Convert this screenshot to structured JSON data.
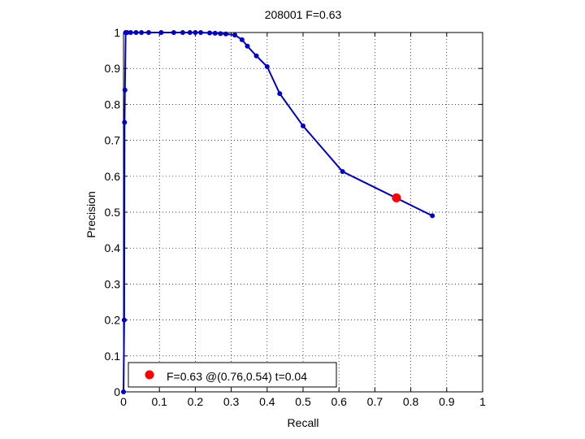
{
  "chart_data": {
    "type": "line",
    "title": "208001 F=0.63",
    "xlabel": "Recall",
    "ylabel": "Precision",
    "xlim": [
      0,
      1
    ],
    "ylim": [
      0,
      1
    ],
    "grid": true,
    "x_ticks": [
      "0",
      "0.1",
      "0.2",
      "0.3",
      "0.4",
      "0.5",
      "0.6",
      "0.7",
      "0.8",
      "0.9",
      "1"
    ],
    "y_ticks": [
      "0",
      "0.1",
      "0.2",
      "0.3",
      "0.4",
      "0.5",
      "0.6",
      "0.7",
      "0.8",
      "0.9",
      "1"
    ],
    "series": [
      {
        "color": "#0000cc",
        "points": [
          [
            0.0,
            0.0
          ],
          [
            0.002,
            0.2
          ],
          [
            0.003,
            0.75
          ],
          [
            0.004,
            0.84
          ],
          [
            0.006,
            1.0
          ],
          [
            0.01,
            1.0
          ],
          [
            0.02,
            1.0
          ],
          [
            0.035,
            1.0
          ],
          [
            0.05,
            1.0
          ],
          [
            0.07,
            1.0
          ],
          [
            0.105,
            1.0
          ],
          [
            0.14,
            1.0
          ],
          [
            0.165,
            1.0
          ],
          [
            0.185,
            1.0
          ],
          [
            0.2,
            1.0
          ],
          [
            0.215,
            1.0
          ],
          [
            0.24,
            0.999
          ],
          [
            0.255,
            0.998
          ],
          [
            0.27,
            0.997
          ],
          [
            0.285,
            0.996
          ],
          [
            0.31,
            0.993
          ],
          [
            0.33,
            0.98
          ],
          [
            0.345,
            0.962
          ],
          [
            0.37,
            0.935
          ],
          [
            0.4,
            0.905
          ],
          [
            0.435,
            0.83
          ],
          [
            0.5,
            0.74
          ],
          [
            0.61,
            0.613
          ],
          [
            0.86,
            0.49
          ]
        ]
      }
    ],
    "highlight": {
      "x": 0.76,
      "y": 0.54,
      "color": "#ff0000"
    },
    "legend": {
      "position": "bottom-left",
      "label": "F=0.63 @(0.76,0.54) t=0.04"
    }
  }
}
